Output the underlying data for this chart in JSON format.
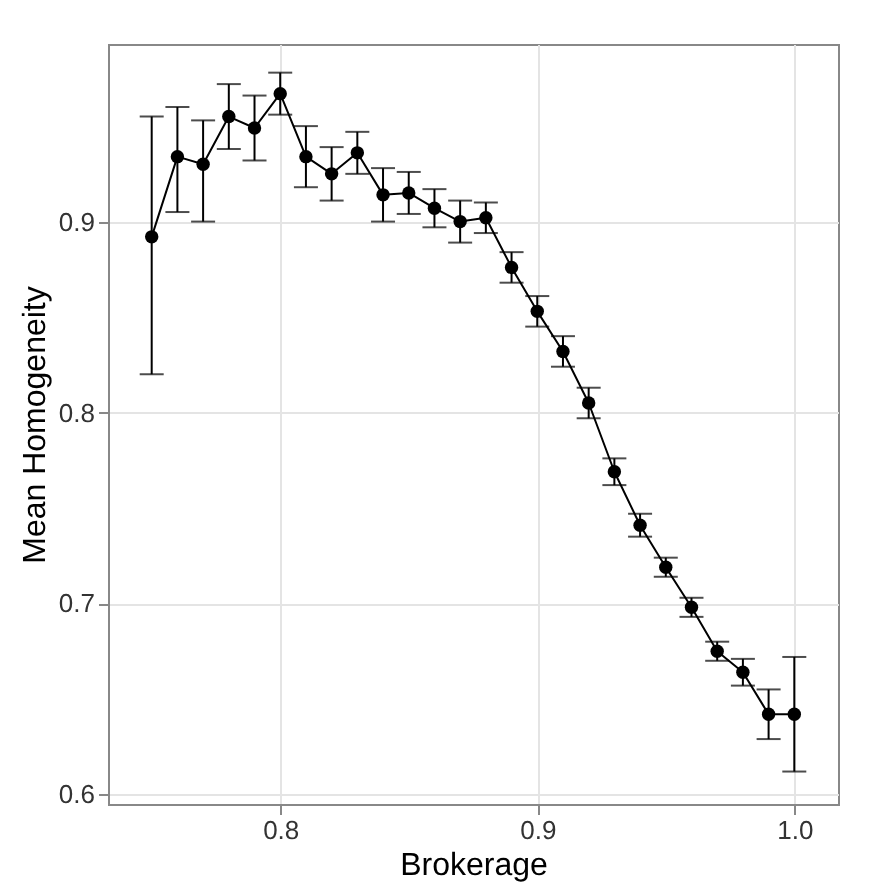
{
  "chart_data": {
    "type": "line",
    "xlabel": "Brokerage",
    "ylabel": "Mean Homogeneity",
    "x": [
      0.75,
      0.76,
      0.77,
      0.78,
      0.79,
      0.8,
      0.81,
      0.82,
      0.83,
      0.84,
      0.85,
      0.86,
      0.87,
      0.88,
      0.89,
      0.9,
      0.91,
      0.92,
      0.93,
      0.94,
      0.95,
      0.96,
      0.97,
      0.98,
      0.99,
      1.0
    ],
    "series": [
      {
        "color": "#000000",
        "values": [
          0.892,
          0.934,
          0.93,
          0.955,
          0.949,
          0.967,
          0.934,
          0.925,
          0.936,
          0.914,
          0.915,
          0.907,
          0.9,
          0.902,
          0.876,
          0.853,
          0.832,
          0.805,
          0.769,
          0.741,
          0.719,
          0.698,
          0.675,
          0.664,
          0.642,
          0.642
        ],
        "errors": [
          [
            0.82,
            0.955
          ],
          [
            0.905,
            0.96
          ],
          [
            0.9,
            0.953
          ],
          0.017,
          0.017,
          0.011,
          0.016,
          0.014,
          0.011,
          0.014,
          0.011,
          0.01,
          0.011,
          0.008,
          0.008,
          0.008,
          0.008,
          0.008,
          0.007,
          0.006,
          0.005,
          0.005,
          0.005,
          0.007,
          0.013,
          0.03
        ]
      }
    ],
    "xlim": [
      0.733,
      1.017
    ],
    "ylim": [
      0.595,
      0.993
    ],
    "xticks": [
      0.8,
      0.9,
      {
        "value": 1,
        "label": "1.0"
      }
    ],
    "yticks": [
      0.6,
      0.7,
      0.8,
      0.9
    ],
    "grid": true,
    "marker": "circle",
    "line_style": "solid"
  }
}
